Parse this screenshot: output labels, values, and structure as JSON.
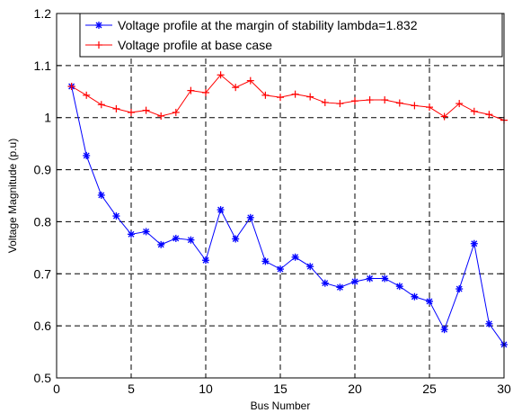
{
  "chart_data": {
    "type": "line",
    "title": "",
    "xlabel": "Bus Number",
    "ylabel": "Voltage Magnitude (p.u)",
    "xlim": [
      0,
      30
    ],
    "ylim": [
      0.5,
      1.2
    ],
    "xticks": [
      0,
      5,
      10,
      15,
      20,
      25,
      30
    ],
    "yticks": [
      0.5,
      0.6,
      0.7,
      0.8,
      0.9,
      1.0,
      1.1,
      1.2
    ],
    "xtick_labels": [
      "0",
      "5",
      "10",
      "15",
      "20",
      "25",
      "30"
    ],
    "ytick_labels": [
      "0.5",
      "0.6",
      "0.7",
      "0.8",
      "0.9",
      "1",
      "1.1",
      "1.2"
    ],
    "grid": true,
    "grid_style": "dashed",
    "legend_position": "top-right",
    "x": [
      1,
      2,
      3,
      4,
      5,
      6,
      7,
      8,
      9,
      10,
      11,
      12,
      13,
      14,
      15,
      16,
      17,
      18,
      19,
      20,
      21,
      22,
      23,
      24,
      25,
      26,
      27,
      28,
      29,
      30
    ],
    "series": [
      {
        "name": "Voltage profile at the margin of stability lambda=1.832",
        "color": "#0000ff",
        "marker": "star",
        "values": [
          1.06,
          0.927,
          0.851,
          0.811,
          0.776,
          0.781,
          0.756,
          0.768,
          0.765,
          0.726,
          0.823,
          0.767,
          0.808,
          0.724,
          0.709,
          0.732,
          0.714,
          0.682,
          0.674,
          0.685,
          0.691,
          0.691,
          0.676,
          0.656,
          0.647,
          0.593,
          0.671,
          0.758,
          0.604,
          0.564
        ]
      },
      {
        "name": "Voltage profile at base case",
        "color": "#ff0000",
        "marker": "plus",
        "values": [
          1.06,
          1.043,
          1.025,
          1.017,
          1.01,
          1.014,
          1.003,
          1.01,
          1.052,
          1.048,
          1.082,
          1.058,
          1.071,
          1.043,
          1.039,
          1.045,
          1.04,
          1.029,
          1.027,
          1.032,
          1.034,
          1.034,
          1.028,
          1.023,
          1.02,
          1.002,
          1.027,
          1.012,
          1.006,
          0.995
        ]
      }
    ]
  }
}
